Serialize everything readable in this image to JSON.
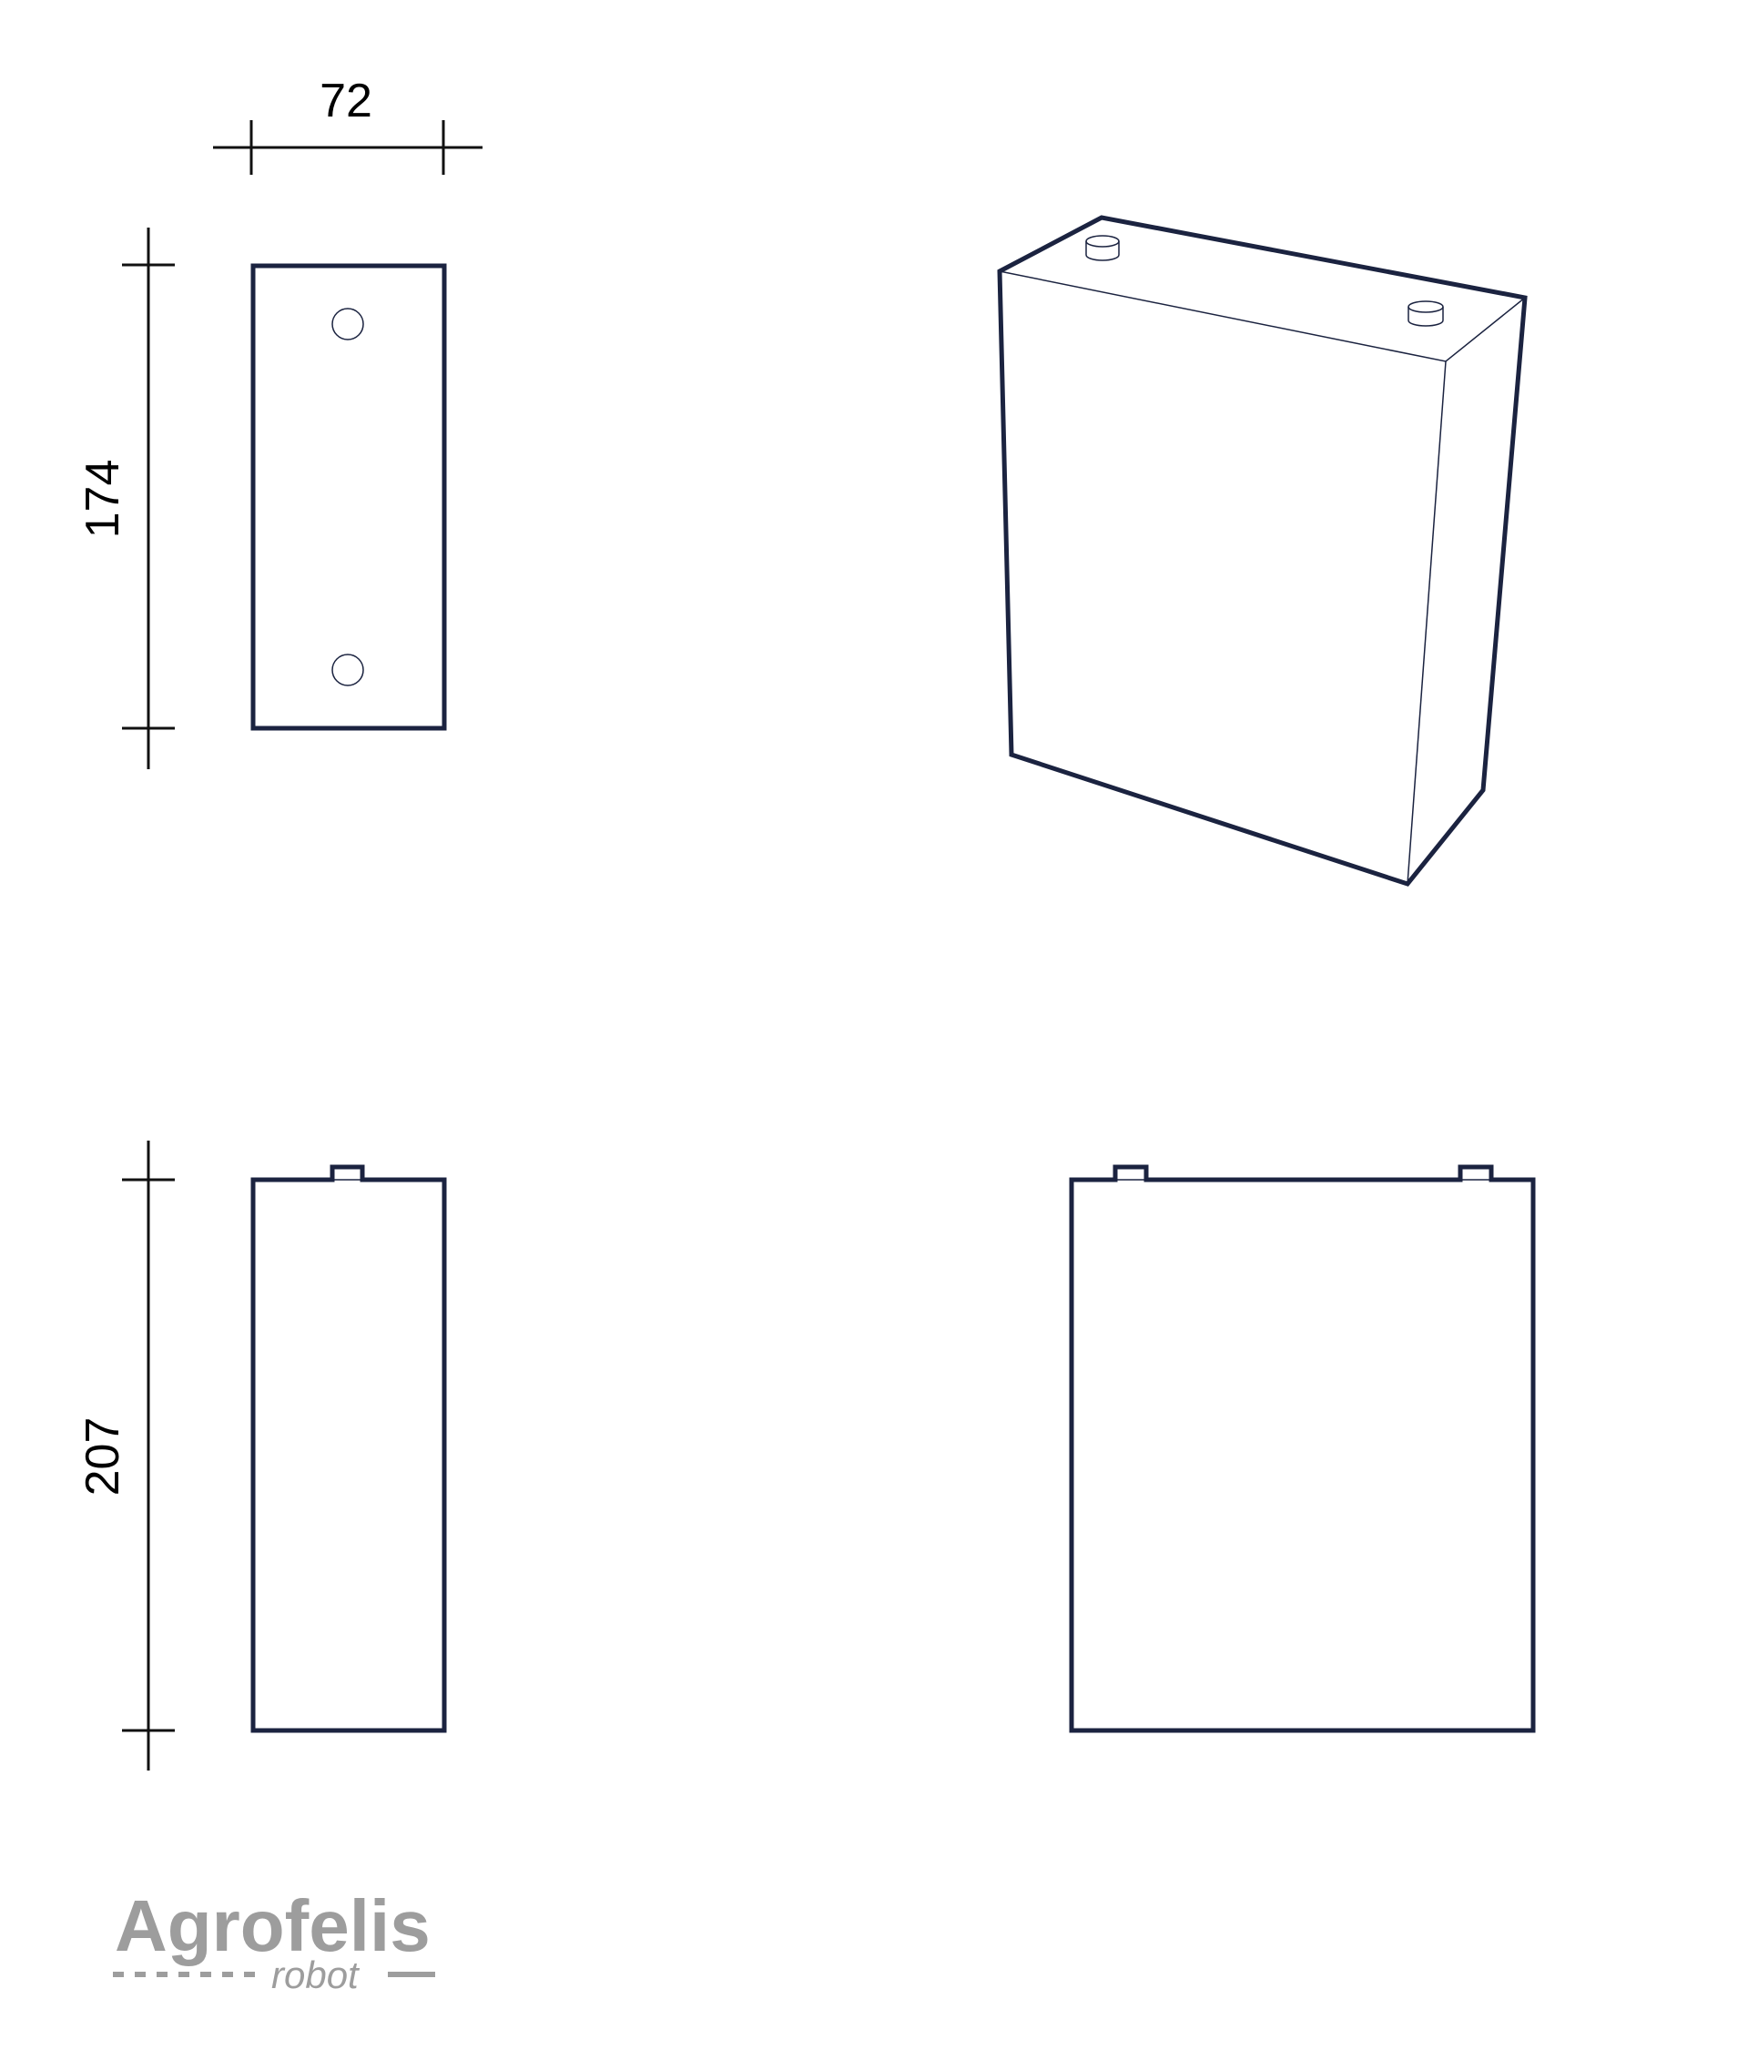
{
  "dimensions": {
    "width_label": "72",
    "depth_label": "174",
    "height_label": "207"
  },
  "logo": {
    "name": "Agrofelis",
    "tagline": "robot"
  },
  "colors": {
    "outline": "#1b2340",
    "dimension": "#111111",
    "logo": "#9d9d9d",
    "background": "#ffffff"
  }
}
